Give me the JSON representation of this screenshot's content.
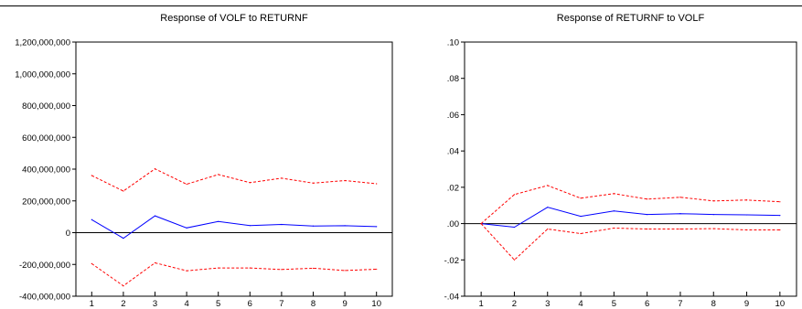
{
  "chart_data": [
    {
      "type": "line",
      "title": "Response of VOLF to RETURNF",
      "x": [
        1,
        2,
        3,
        4,
        5,
        6,
        7,
        8,
        9,
        10
      ],
      "xticks": [
        "1",
        "2",
        "3",
        "4",
        "5",
        "6",
        "7",
        "8",
        "9",
        "10"
      ],
      "ylim": [
        -400000000,
        1200000000
      ],
      "yticks": [
        -400000000,
        -200000000,
        0,
        200000000,
        400000000,
        600000000,
        800000000,
        1000000000,
        1200000000
      ],
      "ytick_labels": [
        "-400,000,000",
        "-200,000,000",
        "0",
        "200,000,000",
        "400,000,000",
        "600,000,000",
        "800,000,000",
        "1,000,000,000",
        "1,200,000,000"
      ],
      "zero_line": true,
      "grid": false,
      "series": [
        {
          "color": "#0000ff",
          "style": "solid",
          "values": [
            82000000,
            -35000000,
            106000000,
            30000000,
            70000000,
            45000000,
            52000000,
            42000000,
            44000000,
            38000000
          ]
        },
        {
          "color": "#ff0000",
          "style": "dashed",
          "values": [
            360000000,
            262000000,
            402000000,
            305000000,
            366000000,
            315000000,
            343000000,
            312000000,
            328000000,
            308000000
          ]
        },
        {
          "color": "#ff0000",
          "style": "dashed",
          "values": [
            -195000000,
            -335000000,
            -190000000,
            -240000000,
            -222000000,
            -222000000,
            -232000000,
            -224000000,
            -238000000,
            -230000000
          ]
        }
      ]
    },
    {
      "type": "line",
      "title": "Response of RETURNF to VOLF",
      "x": [
        1,
        2,
        3,
        4,
        5,
        6,
        7,
        8,
        9,
        10
      ],
      "xticks": [
        "1",
        "2",
        "3",
        "4",
        "5",
        "6",
        "7",
        "8",
        "9",
        "10"
      ],
      "ylim": [
        -0.04,
        0.1
      ],
      "yticks": [
        -0.04,
        -0.02,
        0.0,
        0.02,
        0.04,
        0.06,
        0.08,
        0.1
      ],
      "ytick_labels": [
        "-.04",
        "-.02",
        ".00",
        ".02",
        ".04",
        ".06",
        ".08",
        ".10"
      ],
      "zero_line": true,
      "grid": false,
      "series": [
        {
          "color": "#0000ff",
          "style": "solid",
          "values": [
            0.0,
            -0.002,
            0.009,
            0.004,
            0.007,
            0.005,
            0.0055,
            0.005,
            0.0048,
            0.0045
          ]
        },
        {
          "color": "#ff0000",
          "style": "dashed",
          "values": [
            0.0,
            0.016,
            0.021,
            0.014,
            0.0165,
            0.0135,
            0.0145,
            0.0125,
            0.013,
            0.012
          ]
        },
        {
          "color": "#ff0000",
          "style": "dashed",
          "values": [
            0.0,
            -0.02,
            -0.003,
            -0.0055,
            -0.0025,
            -0.003,
            -0.003,
            -0.0028,
            -0.0035,
            -0.0035
          ]
        }
      ]
    }
  ]
}
